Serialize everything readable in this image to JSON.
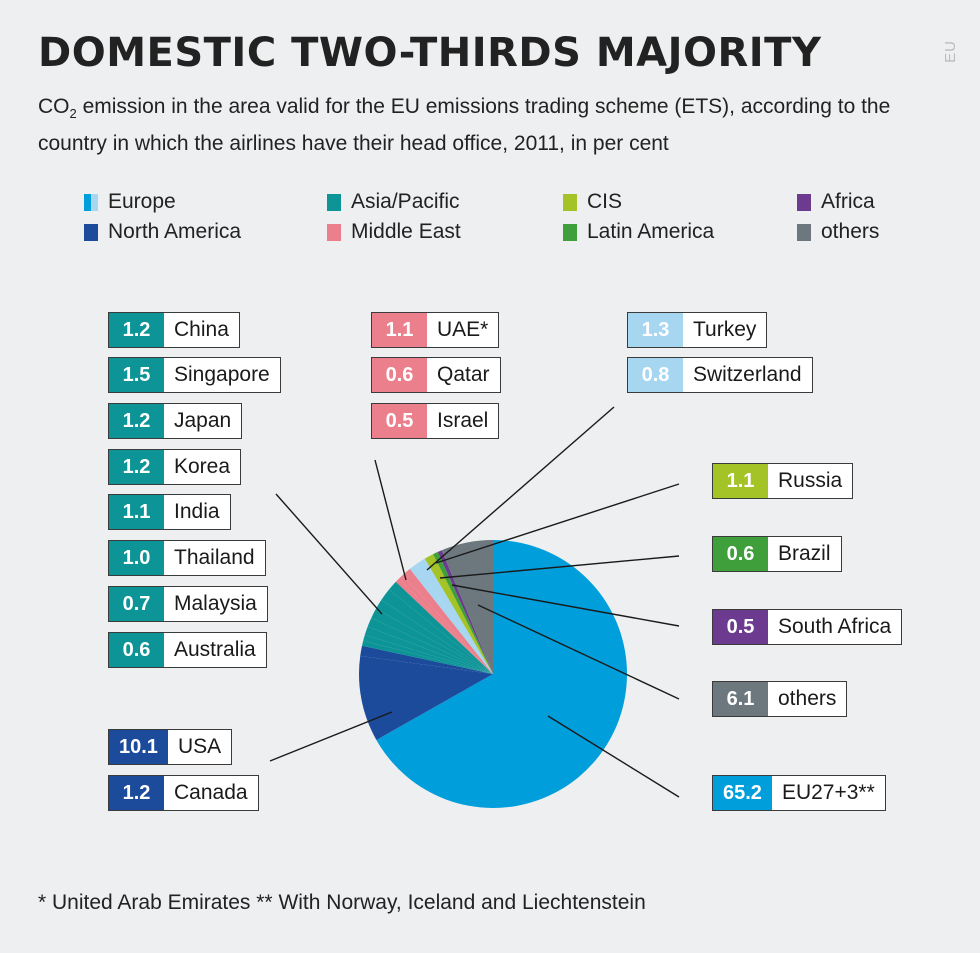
{
  "title": "DOMESTIC TWO-THIRDS MAJORITY",
  "side_tag": "EU",
  "subtitle_pre": "CO",
  "subtitle_sub": "2",
  "subtitle_post": " emission in the area valid for the EU emissions trading scheme (ETS), according to the country in which the airlines have their head office, 2011, in per cent",
  "footnote": "* United Arab Emirates ** With Norway, Iceland and Liechtenstein",
  "colors": {
    "europe": "#009fdb",
    "europe_light": "#a7d6f1",
    "asia": "#0c9497",
    "north_america": "#1c4b9c",
    "middle_east": "#ec7f8c",
    "cis": "#a3c327",
    "latin_america": "#3f9f3a",
    "africa": "#6c3a8e",
    "others": "#6d787e"
  },
  "legend": [
    {
      "label": "Europe",
      "color": "#009fdb",
      "color2": "#a7d6f1"
    },
    {
      "label": "Asia/Pacific",
      "color": "#0c9497"
    },
    {
      "label": "CIS",
      "color": "#a3c327"
    },
    {
      "label": "Africa",
      "color": "#6c3a8e"
    },
    {
      "label": "North America",
      "color": "#1c4b9c"
    },
    {
      "label": "Middle East",
      "color": "#ec7f8c"
    },
    {
      "label": "Latin America",
      "color": "#3f9f3a"
    },
    {
      "label": "others",
      "color": "#6d787e"
    }
  ],
  "chart_data": {
    "type": "pie",
    "title": "DOMESTIC TWO-THIRDS MAJORITY",
    "unit": "per cent",
    "slices": [
      {
        "label": "EU27+3**",
        "value": 65.2,
        "group": "Europe",
        "color": "#009fdb"
      },
      {
        "label": "USA",
        "value": 10.1,
        "group": "North America",
        "color": "#1c4b9c"
      },
      {
        "label": "Canada",
        "value": 1.2,
        "group": "North America",
        "color": "#1c4b9c"
      },
      {
        "label": "Australia",
        "value": 0.6,
        "group": "Asia/Pacific",
        "color": "#0c9497"
      },
      {
        "label": "Malaysia",
        "value": 0.7,
        "group": "Asia/Pacific",
        "color": "#0c9497"
      },
      {
        "label": "Thailand",
        "value": 1.0,
        "group": "Asia/Pacific",
        "color": "#0c9497"
      },
      {
        "label": "India",
        "value": 1.1,
        "group": "Asia/Pacific",
        "color": "#0c9497"
      },
      {
        "label": "Korea",
        "value": 1.2,
        "group": "Asia/Pacific",
        "color": "#0c9497"
      },
      {
        "label": "Japan",
        "value": 1.2,
        "group": "Asia/Pacific",
        "color": "#0c9497"
      },
      {
        "label": "Singapore",
        "value": 1.5,
        "group": "Asia/Pacific",
        "color": "#0c9497"
      },
      {
        "label": "China",
        "value": 1.2,
        "group": "Asia/Pacific",
        "color": "#0c9497"
      },
      {
        "label": "Israel",
        "value": 0.5,
        "group": "Middle East",
        "color": "#ec7f8c"
      },
      {
        "label": "Qatar",
        "value": 0.6,
        "group": "Middle East",
        "color": "#ec7f8c"
      },
      {
        "label": "UAE*",
        "value": 1.1,
        "group": "Middle East",
        "color": "#ec7f8c"
      },
      {
        "label": "Switzerland",
        "value": 0.8,
        "group": "Europe",
        "color": "#a7d6f1"
      },
      {
        "label": "Turkey",
        "value": 1.3,
        "group": "Europe",
        "color": "#a7d6f1"
      },
      {
        "label": "Russia",
        "value": 1.1,
        "group": "CIS",
        "color": "#a3c327"
      },
      {
        "label": "Brazil",
        "value": 0.6,
        "group": "Latin America",
        "color": "#3f9f3a"
      },
      {
        "label": "South Africa",
        "value": 0.5,
        "group": "Africa",
        "color": "#6c3a8e"
      },
      {
        "label": "others",
        "value": 6.1,
        "group": "others",
        "color": "#6d787e"
      }
    ]
  },
  "labels": [
    {
      "value": "1.2",
      "name": "China",
      "color": "#0c9497"
    },
    {
      "value": "1.5",
      "name": "Singapore",
      "color": "#0c9497"
    },
    {
      "value": "1.2",
      "name": "Japan",
      "color": "#0c9497"
    },
    {
      "value": "1.2",
      "name": "Korea",
      "color": "#0c9497"
    },
    {
      "value": "1.1",
      "name": "India",
      "color": "#0c9497"
    },
    {
      "value": "1.0",
      "name": "Thailand",
      "color": "#0c9497"
    },
    {
      "value": "0.7",
      "name": "Malaysia",
      "color": "#0c9497"
    },
    {
      "value": "0.6",
      "name": "Australia",
      "color": "#0c9497"
    },
    {
      "value": "10.1",
      "name": "USA",
      "color": "#1c4b9c"
    },
    {
      "value": "1.2",
      "name": "Canada",
      "color": "#1c4b9c"
    },
    {
      "value": "1.1",
      "name": "UAE*",
      "color": "#ec7f8c"
    },
    {
      "value": "0.6",
      "name": "Qatar",
      "color": "#ec7f8c"
    },
    {
      "value": "0.5",
      "name": "Israel",
      "color": "#ec7f8c"
    },
    {
      "value": "1.3",
      "name": "Turkey",
      "color": "#a7d6f1"
    },
    {
      "value": "0.8",
      "name": "Switzerland",
      "color": "#a7d6f1"
    },
    {
      "value": "1.1",
      "name": "Russia",
      "color": "#a3c327"
    },
    {
      "value": "0.6",
      "name": "Brazil",
      "color": "#3f9f3a"
    },
    {
      "value": "0.5",
      "name": "South Africa",
      "color": "#6c3a8e"
    },
    {
      "value": "6.1",
      "name": "others",
      "color": "#6d787e"
    },
    {
      "value": "65.2",
      "name": "EU27+3**",
      "color": "#009fdb"
    }
  ]
}
